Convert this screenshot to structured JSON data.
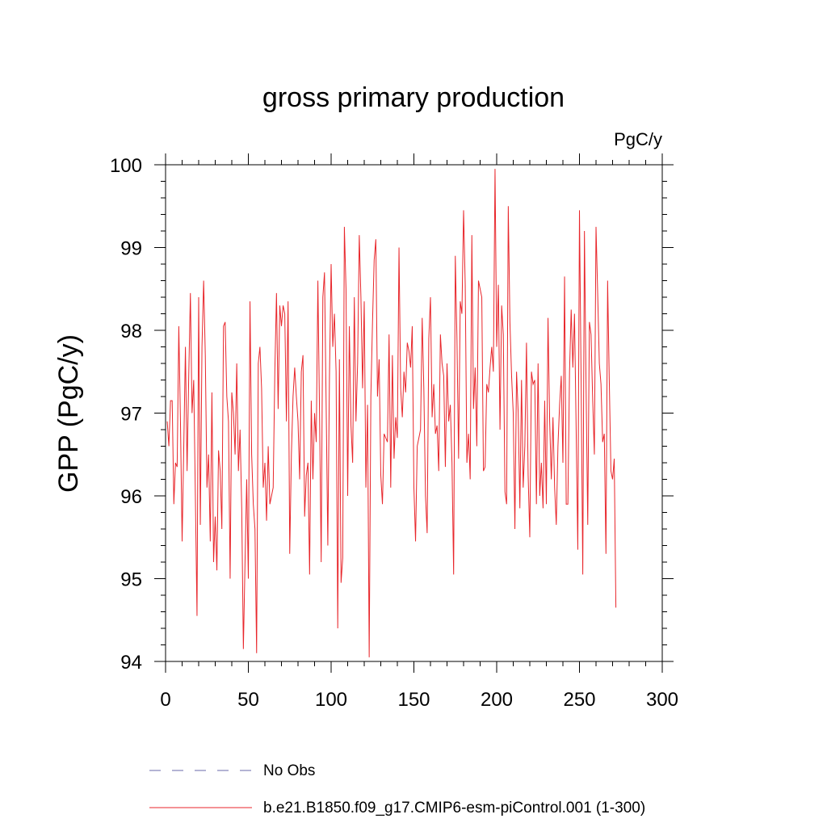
{
  "chart_data": {
    "type": "line",
    "title": "gross primary production",
    "units_label": "PgC/y",
    "ylabel": "GPP  (PgC/y)",
    "xlabel": "",
    "xlim": [
      0,
      300
    ],
    "ylim": [
      94,
      100
    ],
    "x_ticks": [
      0,
      50,
      100,
      150,
      200,
      250,
      300
    ],
    "x_tick_labels": [
      "0",
      "50",
      "100",
      "150",
      "200",
      "250",
      "300"
    ],
    "y_ticks": [
      94,
      95,
      96,
      97,
      98,
      99,
      100
    ],
    "y_tick_labels": [
      "94",
      "95",
      "96",
      "97",
      "98",
      "99",
      "100"
    ],
    "grid": false,
    "legend": [
      {
        "label": "No Obs",
        "color": "#6a6aa8",
        "style": "dashed"
      },
      {
        "label": "b.e21.B1850.f09_g17.CMIP6-esm-piControl.001 (1-300)",
        "color": "#e8262b",
        "style": "solid"
      }
    ],
    "series": [
      {
        "name": "b.e21.B1850.f09_g17.CMIP6-esm-piControl.001 (1-300)",
        "color": "#e8262b",
        "x_start": 1,
        "values": [
          96.9,
          96.6,
          97.15,
          97.15,
          95.9,
          96.4,
          96.35,
          98.05,
          96.9,
          95.45,
          96.6,
          97.8,
          96.3,
          97.45,
          98.45,
          97.0,
          97.4,
          96.0,
          94.55,
          98.4,
          95.65,
          97.8,
          98.6,
          97.7,
          96.1,
          96.5,
          95.45,
          97.25,
          95.2,
          95.75,
          95.1,
          96.55,
          96.3,
          95.6,
          98.05,
          98.1,
          97.2,
          96.9,
          95.0,
          97.25,
          97.0,
          96.5,
          97.6,
          96.3,
          96.8,
          95.85,
          94.15,
          95.2,
          96.2,
          95.0,
          98.35,
          96.5,
          95.9,
          95.6,
          94.1,
          97.6,
          97.8,
          97.3,
          96.1,
          96.4,
          95.7,
          96.6,
          95.9,
          96.0,
          96.1,
          97.5,
          98.45,
          97.05,
          98.3,
          98.05,
          98.3,
          98.2,
          96.9,
          98.35,
          95.3,
          96.5,
          97.2,
          97.55,
          97.2,
          96.9,
          96.2,
          97.5,
          97.7,
          95.75,
          96.25,
          96.4,
          95.05,
          97.15,
          96.2,
          97.0,
          96.65,
          98.6,
          97.0,
          95.2,
          98.4,
          98.7,
          97.1,
          95.4,
          97.45,
          98.8,
          97.8,
          98.2,
          97.5,
          94.4,
          97.65,
          94.95,
          95.25,
          99.25,
          98.5,
          96.0,
          98.05,
          96.85,
          96.4,
          98.4,
          96.9,
          97.6,
          99.15,
          98.4,
          97.3,
          98.35,
          96.1,
          97.1,
          94.05,
          97.2,
          98.1,
          98.85,
          99.1,
          97.2,
          97.65,
          96.25,
          95.9,
          96.75,
          96.7,
          96.65,
          97.95,
          96.1,
          97.7,
          96.45,
          96.95,
          96.7,
          99.0,
          97.3,
          96.95,
          97.5,
          97.25,
          97.85,
          97.75,
          97.55,
          98.05,
          96.1,
          95.45,
          96.6,
          96.7,
          96.8,
          98.15,
          97.3,
          96.0,
          95.55,
          97.9,
          98.4,
          96.95,
          97.35,
          96.75,
          96.85,
          96.3,
          97.95,
          97.6,
          97.45,
          96.35,
          97.6,
          96.9,
          97.1,
          96.4,
          95.05,
          98.9,
          97.9,
          96.45,
          98.35,
          98.2,
          99.45,
          98.55,
          96.4,
          96.75,
          96.2,
          99.15,
          97.05,
          97.55,
          96.6,
          98.6,
          98.5,
          98.4,
          96.3,
          96.35,
          97.35,
          97.25,
          97.55,
          97.8,
          97.5,
          99.95,
          97.8,
          98.55,
          96.8,
          98.3,
          97.95,
          96.05,
          95.9,
          99.5,
          98.1,
          97.45,
          97.0,
          95.6,
          97.5,
          97.0,
          95.85,
          97.4,
          96.1,
          96.6,
          97.85,
          96.25,
          95.5,
          97.5,
          97.35,
          97.4,
          95.9,
          97.6,
          96.0,
          96.4,
          95.85,
          97.15,
          95.9,
          98.15,
          96.9,
          96.2,
          96.95,
          96.1,
          95.65,
          96.6,
          97.1,
          97.45,
          96.4,
          98.65,
          95.9,
          95.9,
          97.5,
          98.25,
          97.55,
          98.2,
          96.8,
          95.35,
          99.45,
          97.4,
          95.05,
          99.2,
          97.3,
          95.65,
          98.1,
          97.95,
          97.15,
          96.5,
          99.25,
          98.45,
          97.6,
          97.35,
          96.65,
          96.75,
          95.3,
          98.6,
          97.4,
          96.3,
          96.2,
          96.45,
          94.65
        ]
      }
    ]
  }
}
